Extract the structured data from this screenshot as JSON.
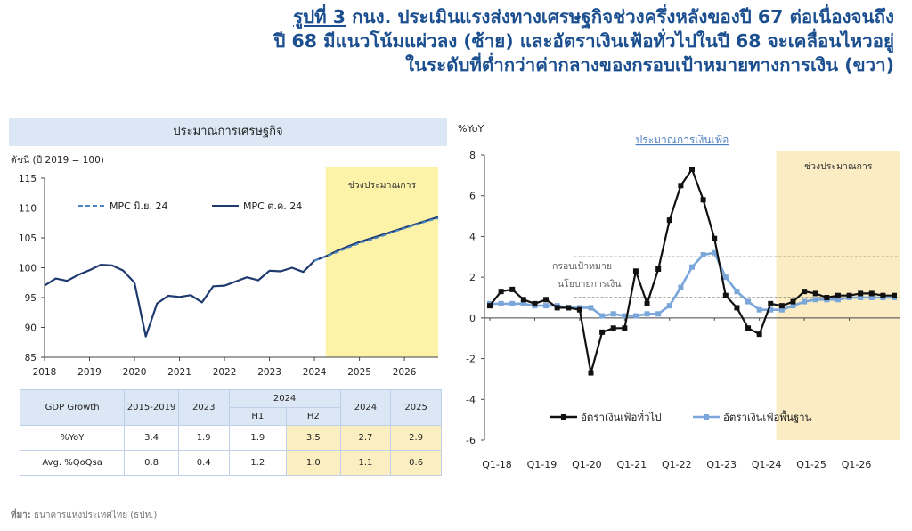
{
  "title": {
    "prefix": "รูปที่ 3",
    "line1": "กนง. ประเมินแรงส่งทางเศรษฐกิจช่วงครึ่งหลังของปี 67 ต่อเนื่องจนถึง",
    "line2": "ปี 68 มีแนวโน้มแผ่วลง (ซ้าย) และอัตราเงินเฟ้อทั่วไปในปี 68 จะเคลื่อนไหวอยู่",
    "line3": "ในระดับที่ต่ำกว่าค่ากลางของกรอบเป้าหมายทางการเงิน (ขวา)"
  },
  "chart_data": [
    {
      "type": "line",
      "title": "ประมาณการเศรษฐกิจ",
      "ylabel": "ดัชนี (ปี 2019 = 100)",
      "ylim": [
        85,
        115
      ],
      "yticks": [
        85,
        90,
        95,
        100,
        105,
        110,
        115
      ],
      "xlim": [
        2018,
        2026.75
      ],
      "xticks": [
        "2018",
        "2019",
        "2020",
        "2021",
        "2022",
        "2023",
        "2024",
        "2025",
        "2026"
      ],
      "forecast_label": "ช่วงประมาณการ",
      "forecast_start": 2024.25,
      "series": [
        {
          "name": "MPC ต.ค. 24",
          "color": "#1f3a6e",
          "style": "solid",
          "x": [
            2018,
            2018.25,
            2018.5,
            2018.75,
            2019,
            2019.25,
            2019.5,
            2019.75,
            2020,
            2020.25,
            2020.5,
            2020.75,
            2021,
            2021.25,
            2021.5,
            2021.75,
            2022,
            2022.25,
            2022.5,
            2022.75,
            2023,
            2023.25,
            2023.5,
            2023.75,
            2024,
            2024.25,
            2024.5,
            2024.75,
            2025,
            2025.25,
            2025.5,
            2025.75,
            2026,
            2026.25,
            2026.5,
            2026.75
          ],
          "values": [
            97.0,
            98.2,
            97.8,
            98.8,
            99.6,
            100.5,
            100.4,
            99.5,
            97.5,
            88.5,
            94.0,
            95.3,
            95.1,
            95.4,
            94.2,
            96.9,
            97.0,
            97.7,
            98.4,
            97.9,
            99.5,
            99.4,
            100.0,
            99.3,
            101.2,
            101.9,
            102.8,
            103.6,
            104.3,
            104.9,
            105.5,
            106.1,
            106.7,
            107.3,
            107.9,
            108.5
          ]
        },
        {
          "name": "MPC มิ.ย. 24",
          "color": "#4a86c8",
          "style": "dashed",
          "x": [
            2024,
            2024.25,
            2024.5,
            2024.75,
            2025,
            2025.25,
            2025.5,
            2025.75,
            2026,
            2026.25,
            2026.5,
            2026.75
          ],
          "values": [
            101.2,
            101.9,
            102.6,
            103.4,
            104.1,
            104.7,
            105.3,
            106.0,
            106.6,
            107.2,
            107.8,
            108.3
          ]
        }
      ]
    },
    {
      "type": "line",
      "title": "ประมาณการเงินเฟ้อ",
      "ylabel": "%YoY",
      "ylim": [
        -6,
        8
      ],
      "yticks": [
        -6,
        -4,
        -2,
        0,
        2,
        4,
        6,
        8
      ],
      "xticks": [
        "Q1-18",
        "Q1-19",
        "Q1-20",
        "Q1-21",
        "Q1-22",
        "Q1-23",
        "Q1-24",
        "Q1-25",
        "Q1-26"
      ],
      "forecast_label": "ช่วงประมาณการ",
      "forecast_start_index": 25.5,
      "target_band": [
        1,
        3
      ],
      "target_label_line1": "กรอบเป้าหมาย",
      "target_label_line2": "นโยบายการเงิน",
      "series": [
        {
          "name": "อัตราเงินเฟ้อทั่วไป",
          "color": "#111111",
          "marker": "square",
          "values": [
            0.6,
            1.3,
            1.4,
            0.9,
            0.7,
            0.9,
            0.5,
            0.5,
            0.4,
            -2.7,
            -0.7,
            -0.5,
            -0.5,
            2.3,
            0.7,
            2.4,
            4.8,
            6.5,
            7.3,
            5.8,
            3.9,
            1.1,
            0.5,
            -0.5,
            -0.8,
            0.7,
            0.6,
            0.8,
            1.3,
            1.2,
            1.0,
            1.1,
            1.1,
            1.2,
            1.2,
            1.1,
            1.1
          ]
        },
        {
          "name": "อัตราเงินเฟ้อพื้นฐาน",
          "color": "#7aa6d9",
          "marker": "square",
          "values": [
            0.7,
            0.7,
            0.7,
            0.7,
            0.6,
            0.6,
            0.6,
            0.5,
            0.5,
            0.5,
            0.1,
            0.2,
            0.1,
            0.1,
            0.2,
            0.2,
            0.6,
            1.5,
            2.5,
            3.1,
            3.2,
            2.0,
            1.3,
            0.8,
            0.4,
            0.4,
            0.4,
            0.6,
            0.8,
            0.9,
            0.9,
            0.9,
            1.0,
            1.0,
            1.0,
            1.0,
            1.0
          ]
        }
      ]
    }
  ],
  "gdp_table": {
    "header_label": "GDP Growth",
    "columns": [
      "2015-2019",
      "2023",
      "2024",
      "2024",
      "2025"
    ],
    "sub_columns": [
      "H1",
      "H2"
    ],
    "rows": [
      {
        "label": "%YoY",
        "values": [
          "3.4",
          "1.9",
          "1.9",
          "3.5",
          "2.7",
          "2.9"
        ]
      },
      {
        "label": "Avg. %QoQsa",
        "values": [
          "0.8",
          "0.4",
          "1.2",
          "1.0",
          "1.1",
          "0.6"
        ]
      }
    ]
  },
  "source": {
    "label": "ที่มา:",
    "text": "ธนาคารแห่งประเทศไทย (ธปท.)"
  }
}
